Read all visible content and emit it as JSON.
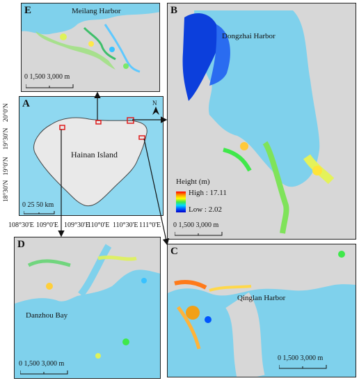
{
  "panels": {
    "A": {
      "label": "A",
      "place": "Hainan Island",
      "scale": "0   25   50 km",
      "north": "N",
      "lon_ticks": [
        "108°30'E",
        "109°0'E",
        "109°30'E",
        "110°0'E",
        "110°30'E",
        "111°0'E"
      ],
      "lat_ticks": [
        "20°0'N",
        "19°30'N",
        "19°0'N",
        "18°30'N"
      ]
    },
    "B": {
      "label": "B",
      "place": "Dongzhai Harbor",
      "scale": "0      1,500    3,000 m"
    },
    "C": {
      "label": "C",
      "place": "Qinglan Harbor",
      "scale": "0      1,500    3,000 m"
    },
    "D": {
      "label": "D",
      "place": "Danzhou Bay",
      "scale": "0      1,500    3,000 m"
    },
    "E": {
      "label": "E",
      "place": "Meilang Harbor",
      "scale": "0      1,500    3,000 m"
    }
  },
  "legend": {
    "title": "Height (m)",
    "high": "High : 17.11",
    "low": "Low : 2.02",
    "colors": [
      "#ff0000",
      "#ff9a00",
      "#ffff00",
      "#3fe84a",
      "#00d8ff",
      "#0055ff",
      "#0000c8"
    ]
  },
  "colors": {
    "sea": "#7fd1ec",
    "land": "#d7d7d7",
    "island": "#e9e9e9",
    "outer_sea": "#8fd8f0",
    "marker": "#e01b1b"
  }
}
